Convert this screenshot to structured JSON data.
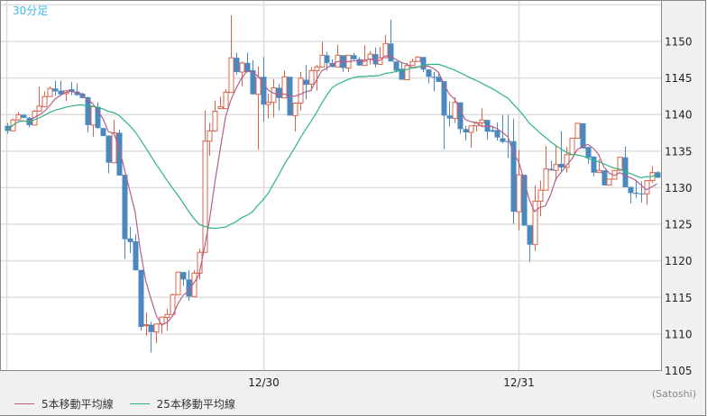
{
  "timeframe_label": "30分足",
  "source_label": "(Satoshi)",
  "legend": [
    {
      "label": "5本移動平均線",
      "color": "#b5608a"
    },
    {
      "label": "25本移動平均線",
      "color": "#2fb57a"
    }
  ],
  "colors": {
    "up": "#d9634a",
    "down": "#4a88c0",
    "grid": "#dedede",
    "background": "#ffffff"
  },
  "chart_data": {
    "type": "candlestick",
    "title": "30分足",
    "ylim": [
      1105,
      1155.6
    ],
    "yticks": [
      1105,
      1110,
      1115,
      1120,
      1125,
      1130,
      1135,
      1140,
      1145,
      1150
    ],
    "grid": true,
    "legend_position": "bottom-left",
    "x_date_labels": [
      {
        "index": 48,
        "label": "12/30"
      },
      {
        "index": 96,
        "label": "12/31"
      }
    ],
    "moving_averages": [
      5,
      25
    ],
    "ohlc": [
      [
        1138.4,
        1138.8,
        1137.3,
        1137.7
      ],
      [
        1137.7,
        1139.4,
        1137.7,
        1139.2
      ],
      [
        1139.2,
        1140.3,
        1139.1,
        1139.9
      ],
      [
        1139.9,
        1140.0,
        1139.4,
        1139.5
      ],
      [
        1139.5,
        1139.6,
        1138.2,
        1138.5
      ],
      [
        1138.5,
        1140.6,
        1138.5,
        1140.4
      ],
      [
        1140.4,
        1143.8,
        1140.4,
        1141.1
      ],
      [
        1141.0,
        1143.1,
        1141.0,
        1142.4
      ],
      [
        1142.4,
        1143.8,
        1142.4,
        1143.5
      ],
      [
        1143.5,
        1144.6,
        1142.5,
        1143.1
      ],
      [
        1143.2,
        1144.6,
        1142.5,
        1142.7
      ],
      [
        1142.8,
        1143.3,
        1141.8,
        1143.2
      ],
      [
        1143.4,
        1144.4,
        1142.6,
        1143.1
      ],
      [
        1143.1,
        1144.2,
        1142.5,
        1142.6
      ],
      [
        1142.8,
        1142.9,
        1142.1,
        1142.2
      ],
      [
        1142.3,
        1142.4,
        1137.5,
        1138.5
      ],
      [
        1138.5,
        1141.1,
        1136.9,
        1141.0
      ],
      [
        1141.0,
        1141.6,
        1138.0,
        1138.1
      ],
      [
        1138.1,
        1138.1,
        1137.0,
        1137.0
      ],
      [
        1137.05,
        1137.1,
        1131.9,
        1133.35
      ],
      [
        1133.35,
        1139.2,
        1133.3,
        1137.45
      ],
      [
        1137.45,
        1137.9,
        1131.6,
        1131.6
      ],
      [
        1131.7,
        1131.7,
        1120.2,
        1122.9
      ],
      [
        1123.0,
        1124.6,
        1121.0,
        1122.5
      ],
      [
        1122.6,
        1123.6,
        1118.6,
        1118.65
      ],
      [
        1118.7,
        1118.7,
        1110.4,
        1110.9
      ],
      [
        1111.1,
        1112.9,
        1109.7,
        1111.2
      ],
      [
        1111.2,
        1111.6,
        1107.4,
        1110.2
      ],
      [
        1110.2,
        1111.3,
        1108.7,
        1111.3
      ],
      [
        1111.3,
        1112.3,
        1110.0,
        1112.25
      ],
      [
        1112.2,
        1113.4,
        1110.4,
        1112.6
      ],
      [
        1112.6,
        1115.45,
        1112.6,
        1115.3
      ],
      [
        1115.3,
        1118.4,
        1115.3,
        1118.4
      ],
      [
        1118.4,
        1118.4,
        1116.5,
        1117.4
      ],
      [
        1117.4,
        1118.65,
        1114.5,
        1115.05
      ],
      [
        1115.05,
        1118.65,
        1115.05,
        1118.25
      ],
      [
        1118.25,
        1121.6,
        1117.4,
        1121.1
      ],
      [
        1121.1,
        1140.5,
        1121.1,
        1136.3
      ],
      [
        1136.3,
        1138.8,
        1134.3,
        1137.7
      ],
      [
        1137.7,
        1141.85,
        1137.6,
        1140.4
      ],
      [
        1140.75,
        1142.4,
        1140.7,
        1141.0
      ],
      [
        1140.75,
        1143.4,
        1140.7,
        1143.0
      ],
      [
        1142.96,
        1153.5,
        1142.9,
        1147.7
      ],
      [
        1147.7,
        1148.4,
        1145.4,
        1145.75
      ],
      [
        1145.75,
        1147.2,
        1143.8,
        1147.0
      ],
      [
        1147.0,
        1148.4,
        1145.7,
        1145.75
      ],
      [
        1146.0,
        1147.4,
        1142.7,
        1142.7
      ],
      [
        1142.7,
        1146.5,
        1135.1,
        1145.0
      ],
      [
        1145.1,
        1147.8,
        1139.0,
        1141.3
      ],
      [
        1141.3,
        1142.8,
        1139.4,
        1141.6
      ],
      [
        1141.6,
        1144.8,
        1139.5,
        1143.6
      ],
      [
        1143.6,
        1144.1,
        1140.5,
        1142.2
      ],
      [
        1142.2,
        1145.95,
        1142.2,
        1145.1
      ],
      [
        1145.1,
        1145.1,
        1139.8,
        1139.8
      ],
      [
        1139.8,
        1141.5,
        1137.6,
        1141.5
      ],
      [
        1141.5,
        1145.8,
        1140.5,
        1144.9
      ],
      [
        1144.7,
        1146.7,
        1142.0,
        1144.0
      ],
      [
        1144.1,
        1146.4,
        1143.2,
        1145.95
      ],
      [
        1145.95,
        1146.7,
        1143.2,
        1146.45
      ],
      [
        1146.45,
        1149.9,
        1146.4,
        1148.05
      ],
      [
        1148.05,
        1148.5,
        1145.95,
        1147.0
      ],
      [
        1147.0,
        1147.5,
        1146.4,
        1146.45
      ],
      [
        1146.45,
        1149.5,
        1146.4,
        1148.05
      ],
      [
        1148.05,
        1148.05,
        1145.8,
        1146.3
      ],
      [
        1146.3,
        1148.05,
        1145.75,
        1148.05
      ],
      [
        1148.05,
        1148.4,
        1147.4,
        1147.5
      ],
      [
        1147.5,
        1147.8,
        1146.6,
        1146.65
      ],
      [
        1146.65,
        1149.4,
        1146.6,
        1147.4
      ],
      [
        1147.5,
        1148.6,
        1146.8,
        1148.2
      ],
      [
        1148.2,
        1149.1,
        1146.4,
        1146.8
      ],
      [
        1146.8,
        1149.2,
        1146.8,
        1147.7
      ],
      [
        1147.7,
        1150.8,
        1147.7,
        1149.65
      ],
      [
        1149.65,
        1152.9,
        1147.2,
        1147.2
      ],
      [
        1147.2,
        1147.2,
        1145.7,
        1145.95
      ],
      [
        1146.2,
        1147.0,
        1144.7,
        1144.7
      ],
      [
        1144.7,
        1147.0,
        1144.7,
        1146.65
      ],
      [
        1146.65,
        1147.6,
        1146.6,
        1147.2
      ],
      [
        1147.2,
        1147.9,
        1147.2,
        1147.8
      ],
      [
        1147.8,
        1147.8,
        1145.7,
        1146.1
      ],
      [
        1146.1,
        1146.1,
        1144.2,
        1145.1
      ],
      [
        1145.1,
        1145.75,
        1143.1,
        1145.0
      ],
      [
        1145.1,
        1145.5,
        1144.4,
        1144.4
      ],
      [
        1144.5,
        1144.5,
        1135.2,
        1139.8
      ],
      [
        1139.8,
        1141.7,
        1138.3,
        1139.4
      ],
      [
        1139.4,
        1142.3,
        1138.8,
        1141.6
      ],
      [
        1141.6,
        1141.6,
        1137.3,
        1137.95
      ],
      [
        1137.95,
        1138.4,
        1136.4,
        1137.5
      ],
      [
        1137.5,
        1138.4,
        1135.4,
        1138.4
      ],
      [
        1138.4,
        1139.0,
        1137.6,
        1138.8
      ],
      [
        1138.8,
        1140.8,
        1138.2,
        1139.2
      ],
      [
        1139.2,
        1139.2,
        1136.5,
        1137.6
      ],
      [
        1137.8,
        1138.4,
        1137.5,
        1137.6
      ],
      [
        1137.8,
        1138.85,
        1136.4,
        1136.8
      ],
      [
        1136.7,
        1139.9,
        1136.0,
        1136.2
      ],
      [
        1136.3,
        1139.9,
        1134.0,
        1136.2
      ],
      [
        1136.3,
        1139.4,
        1125.0,
        1126.65
      ],
      [
        1126.65,
        1135.1,
        1124.1,
        1131.7
      ],
      [
        1131.7,
        1131.7,
        1124.75,
        1124.75
      ],
      [
        1124.8,
        1124.8,
        1119.8,
        1122.15
      ],
      [
        1122.15,
        1130.2,
        1121.3,
        1128.1
      ],
      [
        1128.1,
        1130.9,
        1126.0,
        1129.6
      ],
      [
        1129.6,
        1135.65,
        1129.6,
        1132.5
      ],
      [
        1132.5,
        1133.6,
        1132.3,
        1132.3
      ],
      [
        1132.3,
        1135.8,
        1130.9,
        1133.1
      ],
      [
        1133.2,
        1137.7,
        1132.2,
        1132.7
      ],
      [
        1132.7,
        1135.5,
        1132.0,
        1134.45
      ],
      [
        1134.45,
        1136.7,
        1134.45,
        1136.7
      ],
      [
        1136.7,
        1138.75,
        1136.7,
        1138.75
      ],
      [
        1138.75,
        1138.75,
        1135.3,
        1135.3
      ],
      [
        1135.5,
        1135.5,
        1133.2,
        1134.05
      ],
      [
        1134.2,
        1134.2,
        1131.5,
        1132.0
      ],
      [
        1132.0,
        1133.8,
        1132.0,
        1132.3
      ],
      [
        1132.3,
        1132.3,
        1130.25,
        1130.25
      ],
      [
        1130.3,
        1131.1,
        1130.3,
        1131.1
      ],
      [
        1131.1,
        1132.3,
        1131.1,
        1132.3
      ],
      [
        1132.3,
        1134.1,
        1132.3,
        1134.1
      ],
      [
        1134.1,
        1135.6,
        1130.0,
        1130.0
      ],
      [
        1130.05,
        1130.05,
        1127.8,
        1129.2
      ],
      [
        1129.25,
        1131.0,
        1128.5,
        1129.1
      ],
      [
        1129.15,
        1130.8,
        1127.9,
        1129.05
      ],
      [
        1129.1,
        1130.9,
        1127.6,
        1130.9
      ],
      [
        1130.9,
        1132.9,
        1130.6,
        1132.0
      ],
      [
        1132.05,
        1132.2,
        1131.3,
        1131.3
      ]
    ]
  }
}
